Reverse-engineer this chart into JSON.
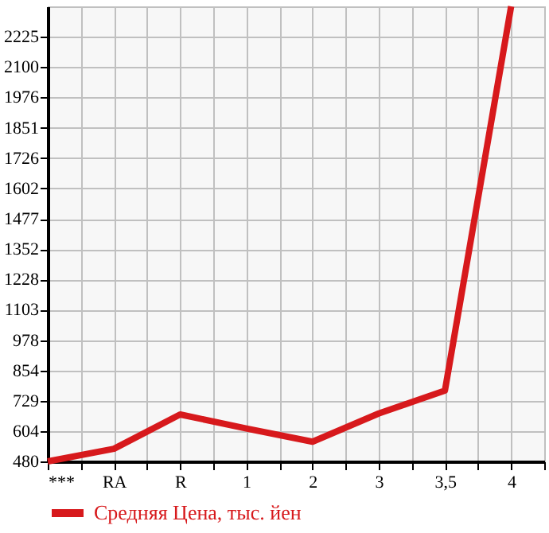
{
  "chart_data": {
    "type": "line",
    "categories": [
      "***",
      "RA",
      "R",
      "1",
      "2",
      "3",
      "3,5",
      "4"
    ],
    "series": [
      {
        "name": "Средняя Цена, тыс. йен",
        "color": "#d7191c",
        "values": [
          480,
          532,
          673,
          615,
          561,
          677,
          771,
          2350
        ]
      }
    ],
    "ylim": [
      480,
      2350
    ],
    "yticks": [
      480,
      604,
      729,
      854,
      978,
      1103,
      1228,
      1352,
      1477,
      1602,
      1726,
      1851,
      1976,
      2100,
      2225
    ],
    "grid": true,
    "legend": "bottom",
    "marker": "none",
    "line_style": "solid"
  }
}
